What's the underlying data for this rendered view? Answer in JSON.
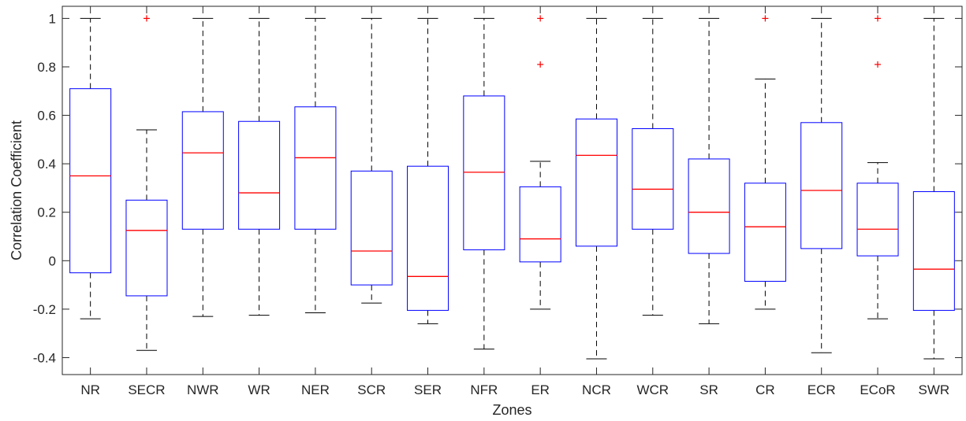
{
  "chart_data": {
    "type": "box",
    "xlabel": "Zones",
    "ylabel": "Correlation Coefficient",
    "ylim": [
      -0.47,
      1.05
    ],
    "yticks": [
      -0.4,
      -0.2,
      0,
      0.2,
      0.4,
      0.6,
      0.8,
      1
    ],
    "ytick_labels": [
      "-0.4",
      "-0.2",
      "0",
      "0.2",
      "0.4",
      "0.6",
      "0.8",
      "1"
    ],
    "grid": false,
    "colors": {
      "box": "#0000ff",
      "median": "#ff0000",
      "whisker": "#000000",
      "outlier": "#ff0000",
      "axis": "#262626"
    },
    "categories": [
      "NR",
      "SECR",
      "NWR",
      "WR",
      "NER",
      "SCR",
      "SER",
      "NFR",
      "ER",
      "NCR",
      "WCR",
      "SR",
      "CR",
      "ECR",
      "ECoR",
      "SWR"
    ],
    "boxes": [
      {
        "category": "NR",
        "min": -0.24,
        "q1": -0.05,
        "median": 0.35,
        "q3": 0.71,
        "max": 1.0,
        "outliers": []
      },
      {
        "category": "SECR",
        "min": -0.37,
        "q1": -0.145,
        "median": 0.125,
        "q3": 0.25,
        "max": 0.54,
        "outliers": [
          1.0
        ]
      },
      {
        "category": "NWR",
        "min": -0.23,
        "q1": 0.13,
        "median": 0.445,
        "q3": 0.615,
        "max": 1.0,
        "outliers": []
      },
      {
        "category": "WR",
        "min": -0.225,
        "q1": 0.13,
        "median": 0.28,
        "q3": 0.575,
        "max": 1.0,
        "outliers": []
      },
      {
        "category": "NER",
        "min": -0.215,
        "q1": 0.13,
        "median": 0.425,
        "q3": 0.635,
        "max": 1.0,
        "outliers": []
      },
      {
        "category": "SCR",
        "min": -0.175,
        "q1": -0.1,
        "median": 0.04,
        "q3": 0.37,
        "max": 1.0,
        "outliers": []
      },
      {
        "category": "SER",
        "min": -0.26,
        "q1": -0.205,
        "median": -0.065,
        "q3": 0.39,
        "max": 1.0,
        "outliers": []
      },
      {
        "category": "NFR",
        "min": -0.365,
        "q1": 0.045,
        "median": 0.365,
        "q3": 0.68,
        "max": 1.0,
        "outliers": []
      },
      {
        "category": "ER",
        "min": -0.2,
        "q1": -0.005,
        "median": 0.09,
        "q3": 0.305,
        "max": 0.41,
        "outliers": [
          0.81,
          1.0
        ]
      },
      {
        "category": "NCR",
        "min": -0.405,
        "q1": 0.06,
        "median": 0.435,
        "q3": 0.585,
        "max": 1.0,
        "outliers": []
      },
      {
        "category": "WCR",
        "min": -0.225,
        "q1": 0.13,
        "median": 0.295,
        "q3": 0.545,
        "max": 1.0,
        "outliers": []
      },
      {
        "category": "SR",
        "min": -0.26,
        "q1": 0.03,
        "median": 0.2,
        "q3": 0.42,
        "max": 1.0,
        "outliers": []
      },
      {
        "category": "CR",
        "min": -0.2,
        "q1": -0.085,
        "median": 0.14,
        "q3": 0.32,
        "max": 0.75,
        "outliers": [
          1.0
        ]
      },
      {
        "category": "ECR",
        "min": -0.38,
        "q1": 0.05,
        "median": 0.29,
        "q3": 0.57,
        "max": 1.0,
        "outliers": []
      },
      {
        "category": "ECoR",
        "min": -0.24,
        "q1": 0.02,
        "median": 0.13,
        "q3": 0.32,
        "max": 0.405,
        "outliers": [
          0.81,
          1.0
        ]
      },
      {
        "category": "SWR",
        "min": -0.405,
        "q1": -0.205,
        "median": -0.035,
        "q3": 0.285,
        "max": 1.0,
        "outliers": []
      }
    ]
  }
}
